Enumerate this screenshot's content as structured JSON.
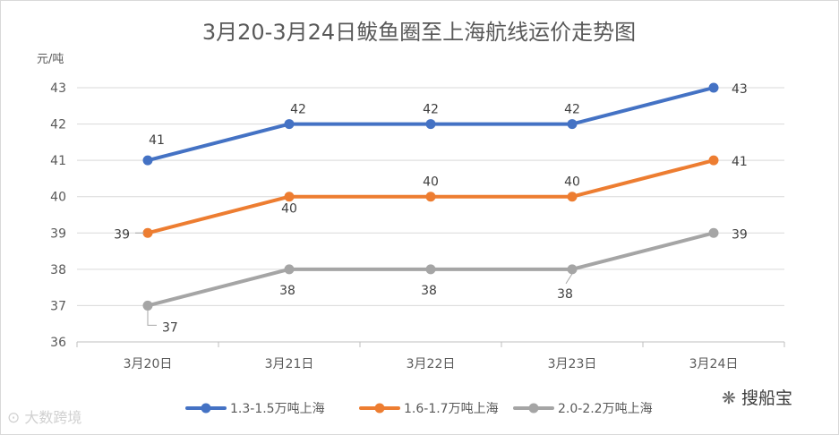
{
  "chart_data": {
    "type": "line",
    "title": "3月20-3月24日鲅鱼圈至上海航线运价走势图",
    "ylabel": "元/吨",
    "xlabel": "",
    "categories": [
      "3月20日",
      "3月21日",
      "3月22日",
      "3月23日",
      "3月24日"
    ],
    "ylim": [
      36,
      43
    ],
    "yticks": [
      "36",
      "37",
      "38",
      "39",
      "40",
      "41",
      "42",
      "43"
    ],
    "grid": true,
    "legend_position": "bottom",
    "series": [
      {
        "name": "1.3-1.5万吨上海",
        "color": "#4472c4",
        "values": [
          41,
          42,
          42,
          42,
          43
        ],
        "labels": [
          "41",
          "42",
          "42",
          "42",
          "43"
        ]
      },
      {
        "name": "1.6-1.7万吨上海",
        "color": "#ed7d31",
        "values": [
          39,
          40,
          40,
          40,
          41
        ],
        "labels": [
          "39",
          "40",
          "40",
          "40",
          "41"
        ]
      },
      {
        "name": "2.0-2.2万吨上海",
        "color": "#a5a5a5",
        "values": [
          37,
          38,
          38,
          38,
          39
        ],
        "labels": [
          "37",
          "38",
          "38",
          "38",
          "39"
        ]
      }
    ]
  },
  "watermarks": {
    "left": "大数跨境",
    "right": "搜船宝"
  }
}
